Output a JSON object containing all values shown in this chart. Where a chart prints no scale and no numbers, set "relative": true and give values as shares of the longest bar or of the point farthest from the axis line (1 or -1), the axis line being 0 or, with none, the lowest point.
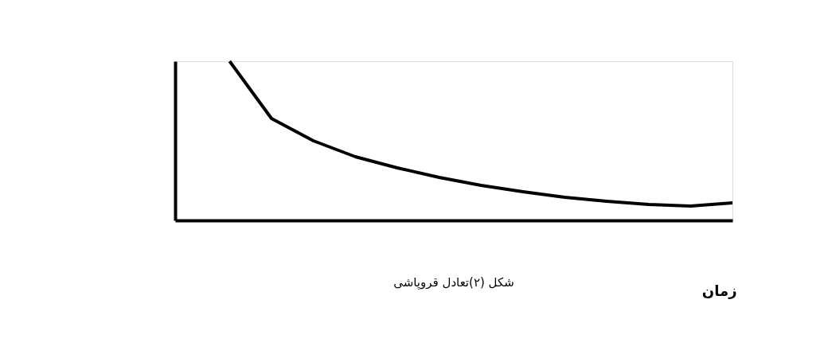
{
  "chart_data": {
    "type": "line",
    "relative": true,
    "xlabel": "زمان",
    "annotations": [
      "شکل (۲)تعادل قروپاشی"
    ],
    "categories": [
      null,
      null,
      null,
      null,
      null,
      null,
      null,
      null,
      null,
      null,
      null,
      null,
      null
    ],
    "series": [
      {
        "color": "#000000",
        "values": [
          1.0,
          0.64,
          0.5,
          0.4,
          0.33,
          0.27,
          0.22,
          0.18,
          0.145,
          0.12,
          0.1,
          0.09,
          0.11
        ]
      }
    ],
    "marker": "none",
    "line_style": "solid",
    "grid": false,
    "legend": false
  }
}
